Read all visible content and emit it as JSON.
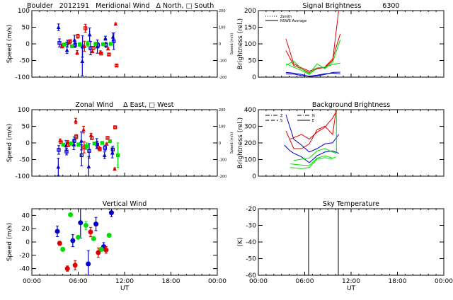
{
  "header": {
    "site": "Boulder",
    "date": "2012191"
  },
  "x_axis": {
    "label": "UT",
    "ticks": [
      "00:00",
      "06:00",
      "12:00",
      "18:00",
      "00:00"
    ],
    "range_hours": [
      0,
      24
    ]
  },
  "chart_data": [
    {
      "type": "scatter",
      "title": "Meridional Wind",
      "legend_text": "Δ North, □ South",
      "ylabel": "Speed (m/s)",
      "ylim": [
        -100,
        100
      ],
      "yticks": [
        "100",
        "50",
        "0",
        "-50",
        "-100"
      ],
      "y2label": "Speed (m/s)",
      "y2ticks": [
        "200",
        "100",
        "0",
        "-100",
        "-200"
      ],
      "series": [
        {
          "color": "#0000cc",
          "marker": "triangle",
          "points": [
            [
              3.45,
              50,
              10
            ],
            [
              4.55,
              -19,
              10
            ],
            [
              5.52,
              12,
              14
            ],
            [
              6.53,
              -52,
              44
            ],
            [
              7.48,
              28,
              20
            ],
            [
              8.48,
              -8,
              20
            ],
            [
              9.52,
              17,
              6
            ],
            [
              10.5,
              21,
              12
            ]
          ]
        },
        {
          "color": "#0000cc",
          "marker": "square",
          "points": [
            [
              3.57,
              3,
              12
            ],
            [
              4.6,
              1,
              10
            ],
            [
              5.6,
              -3,
              8
            ],
            [
              6.56,
              -8,
              32
            ],
            [
              7.6,
              -13,
              20
            ],
            [
              8.57,
              -4,
              8
            ],
            [
              9.6,
              -3,
              8
            ],
            [
              10.6,
              8,
              25
            ]
          ]
        },
        {
          "color": "#dd0000",
          "marker": "triangle",
          "points": [
            [
              3.88,
              -8,
              4
            ],
            [
              4.88,
              5,
              4
            ],
            [
              5.86,
              -26,
              6
            ],
            [
              6.81,
              -7,
              15
            ],
            [
              7.84,
              -22,
              5
            ],
            [
              8.88,
              -25,
              4
            ],
            [
              9.86,
              -14,
              3
            ],
            [
              10.84,
              60,
              3
            ]
          ]
        },
        {
          "color": "#dd0000",
          "marker": "square",
          "points": [
            [
              3.97,
              -5,
              4
            ],
            [
              4.95,
              8,
              4
            ],
            [
              5.95,
              23,
              6
            ],
            [
              6.93,
              47,
              12
            ],
            [
              7.97,
              -12,
              4
            ],
            [
              8.97,
              -29,
              4
            ],
            [
              9.98,
              -32,
              3
            ],
            [
              10.96,
              -65,
              3
            ]
          ]
        },
        {
          "color": "#00dd00",
          "marker": "square",
          "points": [
            [
              4.18,
              -2,
              3
            ],
            [
              5.19,
              -7,
              4
            ],
            [
              6.2,
              -2,
              6
            ],
            [
              7.23,
              0,
              8
            ],
            [
              8.24,
              0,
              5
            ],
            [
              9.22,
              -1,
              3
            ],
            [
              10.22,
              0,
              4
            ]
          ]
        }
      ]
    },
    {
      "type": "line",
      "title": "Signal Brightness",
      "subtitle": "6300",
      "ylabel": "Brightness (rel.)",
      "ylim": [
        0,
        200
      ],
      "yticks": [
        "200",
        "150",
        "100",
        "50",
        "0"
      ],
      "legend": [
        {
          "label": "Zenith",
          "style": "dotted"
        },
        {
          "label": "NSWE Average",
          "style": "solid"
        }
      ],
      "x": [
        3.57,
        4.58,
        5.59,
        6.59,
        7.6,
        8.6,
        9.62,
        10.6
      ],
      "series": [
        {
          "color": "#dd0000",
          "values": [
            115,
            40,
            28,
            18,
            27,
            28,
            50,
            240
          ]
        },
        {
          "color": "#dd0000",
          "values": [
            80,
            35,
            25,
            14,
            25,
            30,
            55,
            130
          ]
        },
        {
          "color": "#00dd00",
          "values": [
            35,
            48,
            25,
            10,
            40,
            25,
            45,
            112
          ]
        },
        {
          "color": "#00dd00",
          "values": [
            40,
            30,
            20,
            8,
            28,
            30,
            38,
            42
          ]
        },
        {
          "color": "#0000cc",
          "values": [
            14,
            12,
            8,
            2,
            4,
            8,
            14,
            15
          ]
        },
        {
          "color": "#0000cc",
          "values": [
            10,
            9,
            5,
            3,
            6,
            10,
            12,
            10
          ]
        }
      ]
    },
    {
      "type": "scatter",
      "title": "Zonal Wind",
      "legend_text": "Δ East, □ West",
      "ylabel": "Speed (m/s)",
      "ylim": [
        -100,
        100
      ],
      "yticks": [
        "100",
        "50",
        "0",
        "-50",
        "-100"
      ],
      "y2label": "Speed (m/s)",
      "y2ticks": [
        "200",
        "100",
        "0",
        "-100",
        "-200"
      ],
      "series": [
        {
          "color": "#0000cc",
          "marker": "triangle",
          "points": [
            [
              3.42,
              -72,
              26
            ],
            [
              4.42,
              -8,
              15
            ],
            [
              5.43,
              -5,
              15
            ],
            [
              6.41,
              6,
              27
            ],
            [
              7.36,
              -71,
              30
            ],
            [
              8.4,
              -2,
              15
            ],
            [
              9.41,
              -37,
              10
            ],
            [
              10.41,
              -30,
              15
            ]
          ]
        },
        {
          "color": "#0000cc",
          "marker": "square",
          "points": [
            [
              3.48,
              -21,
              13
            ],
            [
              4.49,
              -26,
              10
            ],
            [
              5.49,
              6,
              12
            ],
            [
              6.44,
              -37,
              32
            ],
            [
              7.42,
              -24,
              22
            ],
            [
              8.46,
              -5,
              10
            ],
            [
              9.47,
              -15,
              8
            ],
            [
              10.47,
              -20,
              10
            ]
          ]
        },
        {
          "color": "#dd0000",
          "marker": "triangle",
          "points": [
            [
              3.66,
              8,
              4
            ],
            [
              4.67,
              2,
              5
            ],
            [
              5.68,
              66,
              8
            ],
            [
              6.69,
              40,
              10
            ],
            [
              7.66,
              24,
              5
            ],
            [
              8.7,
              -15,
              5
            ],
            [
              9.68,
              -3,
              3
            ],
            [
              10.72,
              -78,
              3
            ]
          ]
        },
        {
          "color": "#dd0000",
          "marker": "square",
          "points": [
            [
              3.75,
              2,
              4
            ],
            [
              4.73,
              -6,
              5
            ],
            [
              5.74,
              19,
              6
            ],
            [
              6.77,
              -13,
              17
            ],
            [
              7.76,
              15,
              5
            ],
            [
              8.79,
              -19,
              5
            ],
            [
              9.8,
              15,
              3
            ],
            [
              10.78,
              47,
              3
            ]
          ]
        },
        {
          "color": "#00dd00",
          "marker": "square",
          "points": [
            [
              4.06,
              -5,
              3
            ],
            [
              5.06,
              -2,
              5
            ],
            [
              6.04,
              -5,
              5
            ],
            [
              7.08,
              -10,
              10
            ],
            [
              8.09,
              -2,
              4
            ],
            [
              9.1,
              0,
              3
            ],
            [
              10.1,
              5,
              3
            ],
            [
              11.14,
              -37,
              37
            ]
          ]
        }
      ]
    },
    {
      "type": "line",
      "title": "Background Brightness",
      "ylabel": "Brightness (rel.)",
      "ylim": [
        0,
        400
      ],
      "yticks": [
        "400",
        "300",
        "200",
        "100",
        "0"
      ],
      "legend": [
        {
          "label": "Z",
          "style": "dash-dot"
        },
        {
          "label": "N",
          "style": "dash-dot"
        },
        {
          "label": "S",
          "style": "dashed"
        },
        {
          "label": "E",
          "style": "solid"
        }
      ],
      "series": [
        {
          "color": "#0000cc",
          "x": [
            3.57,
            4.58,
            5.59,
            6.59,
            7.6,
            8.6,
            9.62,
            10.41
          ],
          "values": [
            370,
            223,
            187,
            145,
            166,
            194,
            201,
            251
          ]
        },
        {
          "color": "#0000cc",
          "x": [
            3.36,
            4.12,
            4.58,
            5.59,
            6.59,
            7.6,
            8.6,
            9.62,
            10.41
          ],
          "values": [
            187,
            152,
            138,
            116,
            81,
            123,
            145,
            152,
            138
          ]
        },
        {
          "color": "#dd0000",
          "x": [
            3.57,
            4.58,
            5.59,
            6.59,
            7.6,
            8.6,
            9.62,
            10.07
          ],
          "values": [
            272,
            166,
            166,
            194,
            279,
            301,
            251,
            400
          ]
        },
        {
          "color": "#dd0000",
          "x": [
            4.12,
            5.59,
            6.59,
            7.6,
            8.6,
            9.62,
            10.2
          ],
          "values": [
            223,
            251,
            223,
            265,
            294,
            350,
            400
          ]
        },
        {
          "color": "#00dd00",
          "x": [
            4.58,
            5.59,
            6.59,
            7.6,
            8.6,
            9.62,
            10.07
          ],
          "values": [
            95,
            102,
            109,
            152,
            166,
            145,
            138
          ]
        },
        {
          "color": "#00dd00",
          "x": [
            4.12,
            5.59,
            6.59,
            7.6,
            8.6,
            9.62,
            10.07
          ],
          "values": [
            74,
            67,
            64,
            109,
            123,
            109,
            116
          ]
        },
        {
          "color": "#00dd00",
          "x": [
            4.12,
            5.59,
            6.59,
            7.6,
            8.6,
            9.62
          ],
          "values": [
            52,
            45,
            52,
            102,
            112,
            102
          ]
        },
        {
          "color": "#00dd00",
          "x": [
            10.1,
            10.1
          ],
          "values": [
            140,
            400
          ]
        }
      ]
    },
    {
      "type": "scatter",
      "title": "Vertical Wind",
      "ylabel": "Speed (m/s)",
      "ylim": [
        -50,
        50
      ],
      "yticks": [
        "40",
        "20",
        "0",
        "-20",
        "-40"
      ],
      "ytick_values": [
        40,
        20,
        0,
        -20,
        -40
      ],
      "series": [
        {
          "color": "#0000cc",
          "marker": "circle",
          "points": [
            [
              3.3,
              16,
              8
            ],
            [
              5.3,
              2,
              9
            ],
            [
              6.3,
              29,
              23
            ],
            [
              7.3,
              -33,
              20
            ],
            [
              8.3,
              27,
              10
            ],
            [
              9.3,
              -7,
              6
            ],
            [
              10.3,
              44,
              6
            ]
          ]
        },
        {
          "color": "#dd0000",
          "marker": "circle",
          "points": [
            [
              3.6,
              -2,
              3
            ],
            [
              4.6,
              -40,
              4
            ],
            [
              5.6,
              -35,
              7
            ],
            [
              7.6,
              15,
              7
            ],
            [
              8.6,
              -16,
              7
            ],
            [
              9.6,
              -12,
              5
            ]
          ]
        },
        {
          "color": "#00dd00",
          "marker": "circle",
          "points": [
            [
              4.0,
              -11,
              3
            ],
            [
              5.0,
              41,
              2
            ],
            [
              6.0,
              7,
              2
            ],
            [
              7.0,
              25,
              6
            ],
            [
              8.0,
              5,
              2
            ],
            [
              9.0,
              -11,
              3
            ],
            [
              10.0,
              10,
              2
            ]
          ]
        }
      ]
    },
    {
      "type": "line",
      "title": "Sky Temperature",
      "ylabel": "(K)",
      "ylim": [
        -60,
        -20
      ],
      "yticks": [
        "-20",
        "-30",
        "-40",
        "-50",
        "-60"
      ],
      "vertical_lines_x": [
        6.5,
        10.35
      ],
      "series": []
    }
  ]
}
